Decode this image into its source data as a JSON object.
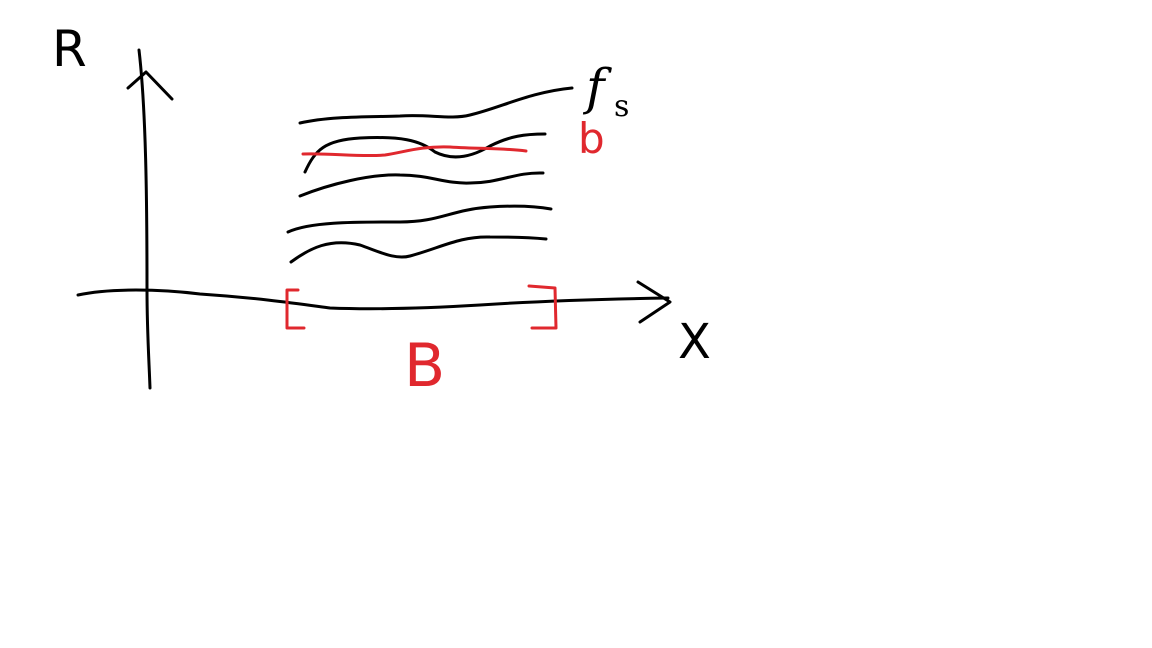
{
  "labels": {
    "y_axis": "R",
    "x_axis": "X",
    "family": "f",
    "family_sub": "s",
    "highlight_curve": "b",
    "interval": "B"
  },
  "colors": {
    "ink": "#000000",
    "accent": "#e0282e",
    "background": "#ffffff"
  }
}
